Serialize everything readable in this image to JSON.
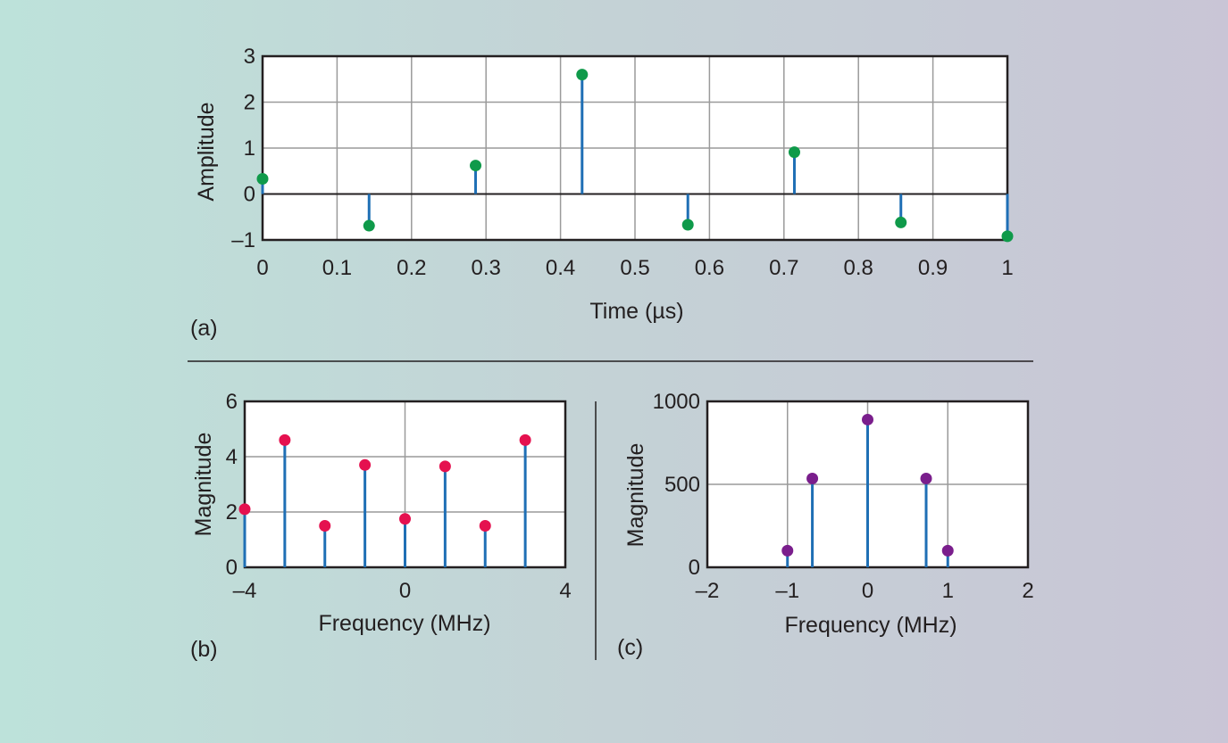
{
  "colors": {
    "stem": "#1f6fb5",
    "grid": "#9a9a9a",
    "axis": "#231f20",
    "panel_a_marker": "#0f9a4a",
    "panel_b_marker": "#e5114f",
    "panel_c_marker": "#7a1e8c"
  },
  "panels": [
    {
      "label": "(a)",
      "xlabel": "Time (µs)",
      "ylabel": "Amplitude",
      "xtick_labels": [
        "0",
        "0.1",
        "0.2",
        "0.3",
        "0.4",
        "0.5",
        "0.6",
        "0.7",
        "0.8",
        "0.9",
        "1"
      ],
      "ytick_labels": [
        "–1",
        "0",
        "1",
        "2",
        "3"
      ]
    },
    {
      "label": "(b)",
      "xlabel": "Frequency (MHz)",
      "ylabel": "Magnitude",
      "xtick_labels": [
        "–4",
        "0",
        "4"
      ],
      "ytick_labels": [
        "0",
        "2",
        "4",
        "6"
      ]
    },
    {
      "label": "(c)",
      "xlabel": "Frequency (MHz)",
      "ylabel": "Magnitude",
      "xtick_labels": [
        "–2",
        "–1",
        "0",
        "1",
        "2"
      ],
      "ytick_labels": [
        "0",
        "500",
        "1000"
      ]
    }
  ],
  "chart_data": [
    {
      "type": "scatter",
      "style": "stem",
      "x": [
        0,
        0.143,
        0.286,
        0.429,
        0.571,
        0.714,
        0.857,
        1.0
      ],
      "y": [
        0.33,
        -0.69,
        0.62,
        2.6,
        -0.67,
        0.91,
        -0.62,
        -0.92
      ],
      "xlim": [
        0,
        1
      ],
      "ylim": [
        -1,
        3
      ],
      "xticks": [
        0,
        0.1,
        0.2,
        0.3,
        0.4,
        0.5,
        0.6,
        0.7,
        0.8,
        0.9,
        1
      ],
      "yticks": [
        -1,
        0,
        1,
        2,
        3
      ],
      "zero_line": true,
      "grid": true
    },
    {
      "type": "scatter",
      "style": "stem",
      "x": [
        -4,
        -3,
        -2,
        -1,
        0,
        1,
        2,
        3
      ],
      "y": [
        2.1,
        4.6,
        1.5,
        3.7,
        1.75,
        3.65,
        1.5,
        4.6
      ],
      "xlim": [
        -4,
        4
      ],
      "ylim": [
        0,
        6
      ],
      "xticks": [
        -4,
        0,
        4
      ],
      "yticks": [
        0,
        2,
        4,
        6
      ],
      "grid_x": [
        -4,
        0,
        4
      ],
      "grid_y": [
        0,
        2,
        4,
        6
      ],
      "grid": true
    },
    {
      "type": "scatter",
      "style": "stem",
      "x": [
        -1.0,
        -0.69,
        0,
        0.73,
        1.0
      ],
      "y": [
        100,
        535,
        890,
        535,
        100
      ],
      "xlim": [
        -2,
        2
      ],
      "ylim": [
        0,
        1000
      ],
      "xticks": [
        -2,
        -1,
        0,
        1,
        2
      ],
      "yticks": [
        0,
        500,
        1000
      ],
      "grid_x": [
        -2,
        -1,
        0,
        1,
        2
      ],
      "grid_y": [
        0,
        500,
        1000
      ],
      "grid": true
    }
  ]
}
